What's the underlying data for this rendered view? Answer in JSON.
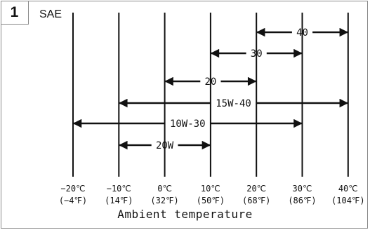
{
  "figure": {
    "number": "1",
    "viscosity_label": "SAE"
  },
  "x_axis": {
    "title": "Ambient temperature",
    "ticks": [
      {
        "c_value": -20,
        "c_label": "−20℃",
        "f_label": "(−4℉)"
      },
      {
        "c_value": -10,
        "c_label": "−10℃",
        "f_label": "(14℉)"
      },
      {
        "c_value": 0,
        "c_label": "0℃",
        "f_label": "(32℉)"
      },
      {
        "c_value": 10,
        "c_label": "10℃",
        "f_label": "(50℉)"
      },
      {
        "c_value": 20,
        "c_label": "20℃",
        "f_label": "(68℉)"
      },
      {
        "c_value": 30,
        "c_label": "30℃",
        "f_label": "(86℉)"
      },
      {
        "c_value": 40,
        "c_label": "40℃",
        "f_label": "(104℉)"
      }
    ]
  },
  "grades": [
    {
      "label": "40",
      "min_c": 20,
      "max_c": 40
    },
    {
      "label": "30",
      "min_c": 10,
      "max_c": 30
    },
    {
      "label": "20",
      "min_c": 0,
      "max_c": 20
    },
    {
      "label": "15W-40",
      "min_c": -10,
      "max_c": 40
    },
    {
      "label": "10W-30",
      "min_c": -20,
      "max_c": 30
    },
    {
      "label": "20W",
      "min_c": -10,
      "max_c": 10
    }
  ]
}
